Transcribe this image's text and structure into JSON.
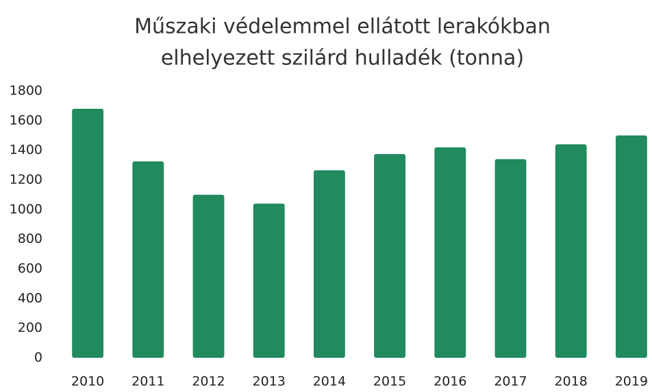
{
  "chart_data": {
    "type": "bar",
    "title": [
      "Műszaki védelemmel ellátott lerakókban",
      "elhelyezett szilárd hulladék (tonna)"
    ],
    "categories": [
      "2010",
      "2011",
      "2012",
      "2013",
      "2014",
      "2015",
      "2016",
      "2017",
      "2018",
      "2019"
    ],
    "values": [
      1680,
      1325,
      1100,
      1040,
      1265,
      1375,
      1420,
      1340,
      1440,
      1500
    ],
    "color": "#218a5e",
    "ylim": [
      0,
      1800
    ],
    "yticks": [
      0,
      200,
      400,
      600,
      800,
      1000,
      1200,
      1400,
      1600,
      1800
    ],
    "grid": false
  }
}
